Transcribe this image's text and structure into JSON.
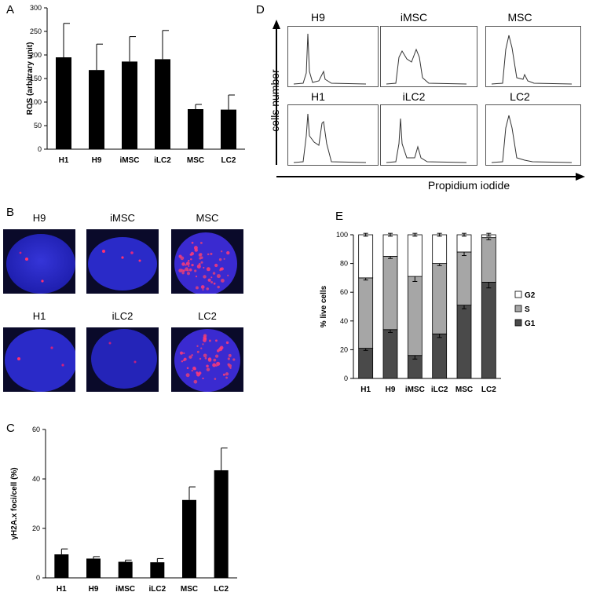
{
  "panels": {
    "a": "A",
    "b": "B",
    "c": "C",
    "d": "D",
    "e": "E"
  },
  "images_b": {
    "labels": [
      "H9",
      "iMSC",
      "MSC",
      "H1",
      "iLC2",
      "LC2"
    ]
  },
  "flow_d": {
    "labels": [
      "H9",
      "iMSC",
      "MSC",
      "H1",
      "iLC2",
      "LC2"
    ],
    "ylabel": "cells number",
    "xlabel": "Propidium iodide"
  },
  "chart_data": [
    {
      "id": "A",
      "type": "bar",
      "categories": [
        "H1",
        "H9",
        "iMSC",
        "iLC2",
        "MSC",
        "LC2"
      ],
      "values": [
        195,
        168,
        186,
        191,
        85,
        84
      ],
      "errors": [
        72,
        55,
        53,
        61,
        10,
        31
      ],
      "ylabel": "ROS (arbitrary unit)",
      "ylim": [
        0,
        300
      ],
      "yticks": [
        0,
        50,
        100,
        150,
        200,
        250,
        300
      ],
      "color": "#000000"
    },
    {
      "id": "C",
      "type": "bar",
      "categories": [
        "H1",
        "H9",
        "iMSC",
        "iLC2",
        "MSC",
        "LC2"
      ],
      "values": [
        9.5,
        7.8,
        6.5,
        6.3,
        31.5,
        43.5
      ],
      "errors": [
        2.2,
        0.8,
        0.7,
        1.5,
        5.3,
        9.0
      ],
      "ylabel": "γH2A.x foci/cell (%)",
      "ylim": [
        0,
        60
      ],
      "yticks": [
        0,
        20,
        40,
        60
      ],
      "color": "#000000"
    },
    {
      "id": "E",
      "type": "bar",
      "stacked": true,
      "categories": [
        "H1",
        "H9",
        "iMSC",
        "iLC2",
        "MSC",
        "LC2"
      ],
      "series": [
        {
          "name": "G1",
          "values": [
            21,
            34,
            16,
            31,
            51,
            67
          ],
          "errors": [
            1.5,
            2,
            2.5,
            2.5,
            2.5,
            4
          ],
          "color": "#4a4a4a"
        },
        {
          "name": "S",
          "values": [
            49,
            51,
            55,
            49,
            37,
            31
          ],
          "errors": [
            1.5,
            1.5,
            3.5,
            1.5,
            2.5,
            1.5
          ],
          "color": "#a6a6a6"
        },
        {
          "name": "G2",
          "values": [
            30,
            15,
            29,
            20,
            12,
            2
          ],
          "errors": [
            1,
            1,
            1,
            1,
            1,
            1
          ],
          "color": "#ffffff"
        }
      ],
      "legend": [
        "G2",
        "S",
        "G1"
      ],
      "legend_position": "right",
      "ylabel": "% live cells",
      "ylim": [
        0,
        100
      ],
      "yticks": [
        0,
        20,
        40,
        60,
        80,
        100
      ]
    }
  ]
}
